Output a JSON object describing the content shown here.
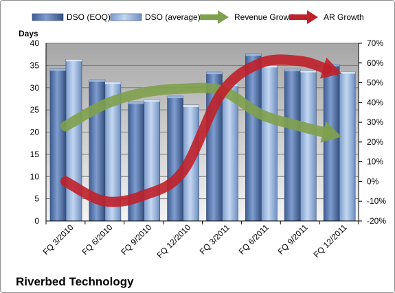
{
  "chart_data": {
    "type": "bar",
    "title": "",
    "company_label": "Riverbed Technology",
    "ylabel": "Days",
    "y2label": "",
    "categories": [
      "FQ 3/2010",
      "FQ 6/2010",
      "FQ 9/2010",
      "FQ 12/2010",
      "FQ 3/2011",
      "FQ 6/2011",
      "FQ 9/2011",
      "FQ 12/2011"
    ],
    "ylim": [
      0,
      40
    ],
    "yticks": [
      0,
      5,
      10,
      15,
      20,
      25,
      30,
      35,
      40
    ],
    "y2lim": [
      -20,
      70
    ],
    "y2ticks": [
      "-20%",
      "-10%",
      "0%",
      "10%",
      "20%",
      "30%",
      "40%",
      "50%",
      "60%",
      "70%"
    ],
    "y2tick_values": [
      -20,
      -10,
      0,
      10,
      20,
      30,
      40,
      50,
      60,
      70
    ],
    "legend_position": "top",
    "grid": true,
    "series": [
      {
        "name": "DSO (EOQ)",
        "kind": "bar",
        "axis": "left",
        "color": "#5a77ac",
        "values": [
          34.3,
          31.8,
          26.8,
          28.1,
          33.5,
          37.6,
          34.2,
          35.3
        ]
      },
      {
        "name": "DSO (average)",
        "kind": "bar",
        "axis": "left",
        "color": "#96b4de",
        "values": [
          36.4,
          31.3,
          27.3,
          26.1,
          30.8,
          35.0,
          33.9,
          33.6
        ]
      },
      {
        "name": "Revenue Growth",
        "kind": "line",
        "axis": "right",
        "color": "#7fa14d",
        "values": [
          28,
          39,
          45,
          47,
          46,
          34,
          28,
          23
        ]
      },
      {
        "name": "AR Growth",
        "kind": "line",
        "axis": "right",
        "color": "#c0202a",
        "values": [
          0,
          -10,
          -7,
          5,
          45,
          60,
          61,
          55
        ]
      }
    ]
  }
}
